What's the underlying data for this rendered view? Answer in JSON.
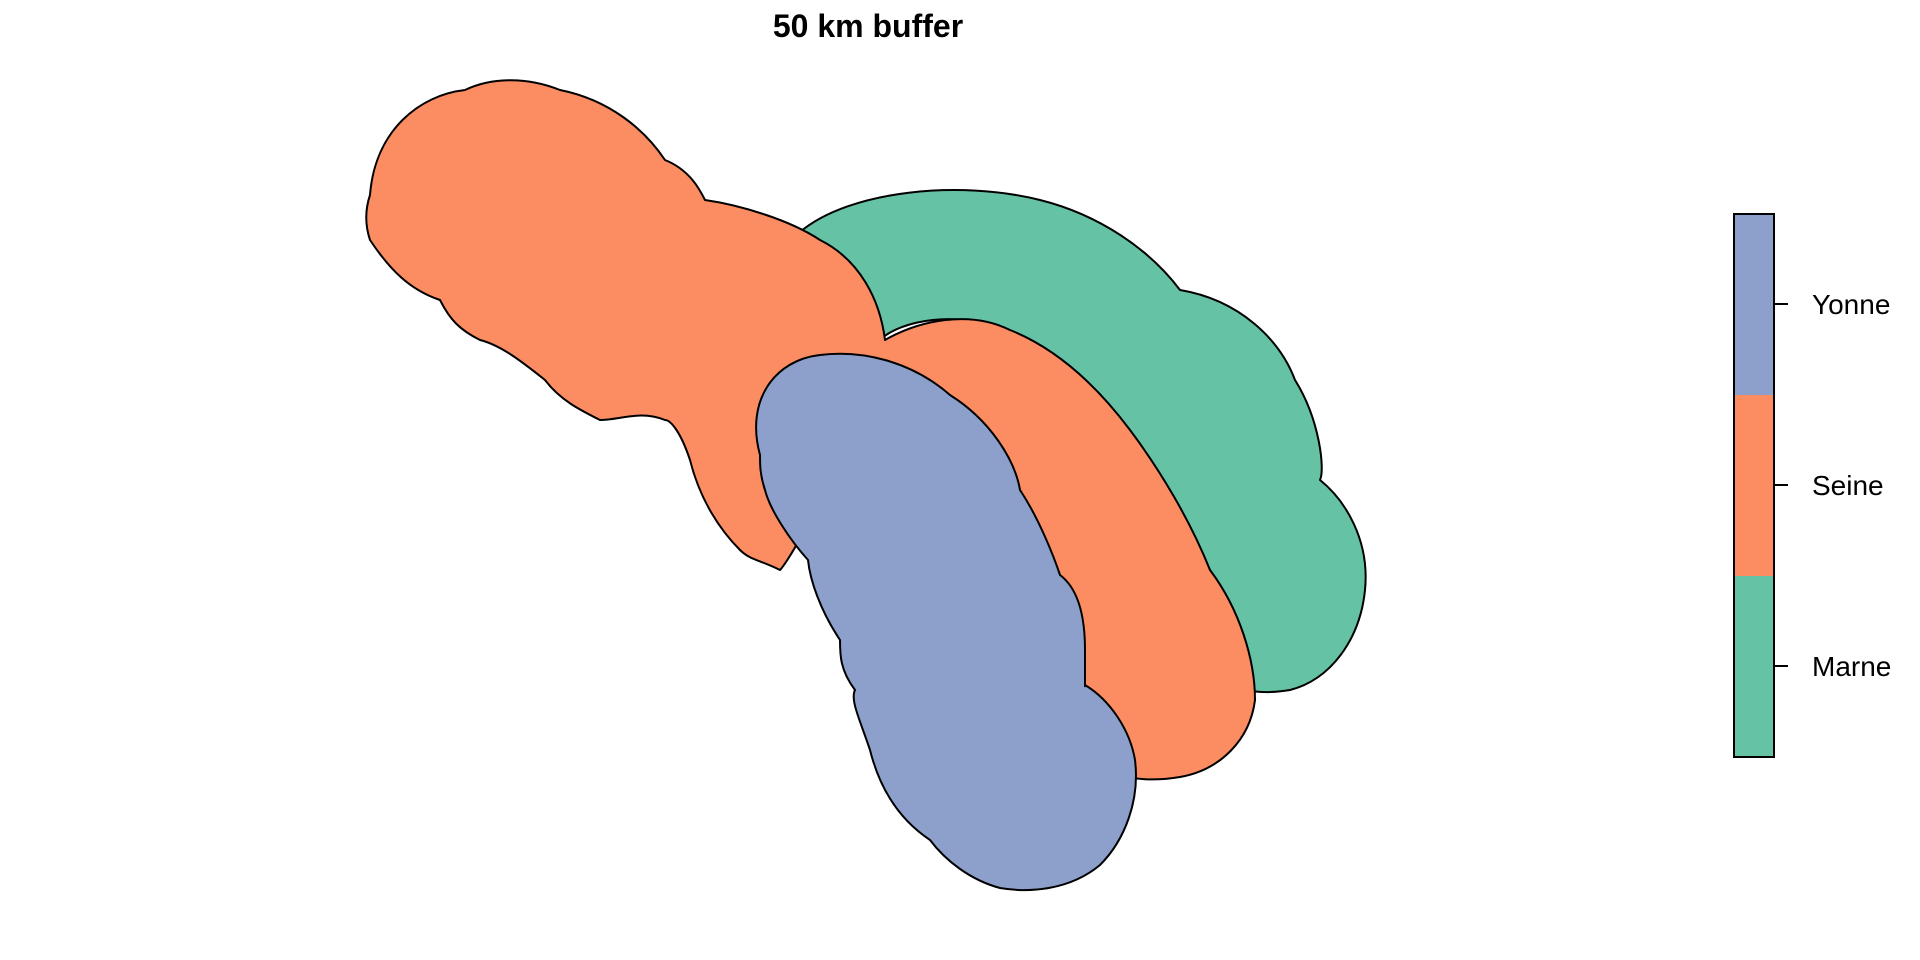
{
  "title": "50 km buffer",
  "legend": {
    "items": [
      {
        "label": "Yonne",
        "color": "#8DA0CB"
      },
      {
        "label": "Seine",
        "color": "#FC8D62"
      },
      {
        "label": "Marne",
        "color": "#66C2A5"
      }
    ]
  },
  "regions": [
    {
      "name": "Marne",
      "color": "#66C2A5"
    },
    {
      "name": "Seine",
      "color": "#FC8D62"
    },
    {
      "name": "Yonne",
      "color": "#8DA0CB"
    }
  ]
}
